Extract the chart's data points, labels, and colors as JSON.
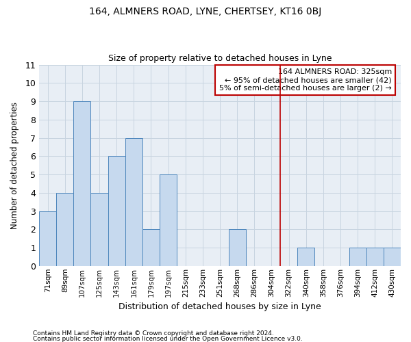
{
  "title": "164, ALMNERS ROAD, LYNE, CHERTSEY, KT16 0BJ",
  "subtitle": "Size of property relative to detached houses in Lyne",
  "xlabel": "Distribution of detached houses by size in Lyne",
  "ylabel": "Number of detached properties",
  "footnote1": "Contains HM Land Registry data © Crown copyright and database right 2024.",
  "footnote2": "Contains public sector information licensed under the Open Government Licence v3.0.",
  "categories": [
    "71sqm",
    "89sqm",
    "107sqm",
    "125sqm",
    "143sqm",
    "161sqm",
    "179sqm",
    "197sqm",
    "215sqm",
    "233sqm",
    "251sqm",
    "268sqm",
    "286sqm",
    "304sqm",
    "322sqm",
    "340sqm",
    "358sqm",
    "376sqm",
    "394sqm",
    "412sqm",
    "430sqm"
  ],
  "values": [
    3,
    4,
    9,
    4,
    6,
    7,
    2,
    5,
    0,
    0,
    0,
    2,
    0,
    0,
    0,
    1,
    0,
    0,
    1,
    1,
    1
  ],
  "bar_color": "#c6d9ee",
  "bar_edge_color": "#4d86bc",
  "ylim": [
    0,
    11
  ],
  "yticks": [
    0,
    1,
    2,
    3,
    4,
    5,
    6,
    7,
    8,
    9,
    10,
    11
  ],
  "vline_index": 14,
  "vline_color": "#bb0000",
  "annotation_title": "164 ALMNERS ROAD: 325sqm",
  "annotation_line1": "← 95% of detached houses are smaller (42)",
  "annotation_line2": "5% of semi-detached houses are larger (2) →",
  "annotation_box_color": "#bb0000",
  "grid_color": "#c8d4e0",
  "background_color": "#e8eef5"
}
